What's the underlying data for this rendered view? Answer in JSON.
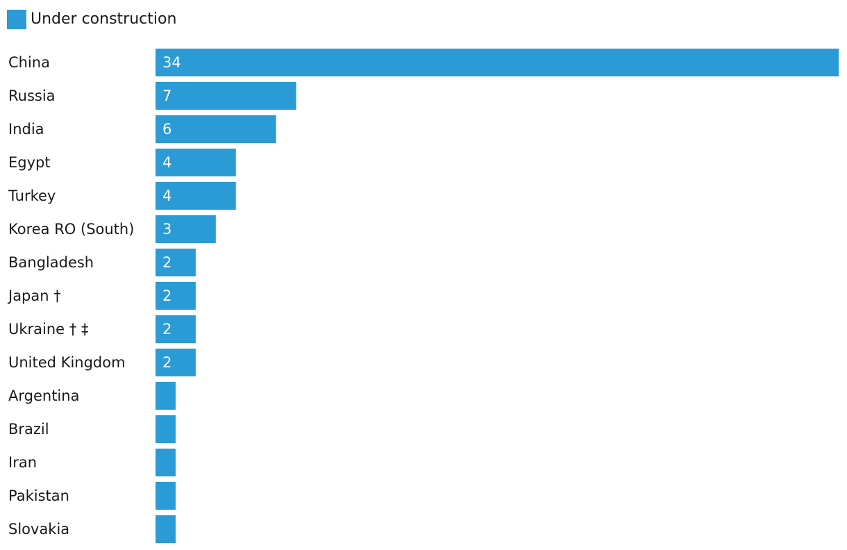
{
  "colors": {
    "bar": "#2b9bd5"
  },
  "legend": {
    "label": "Under construction"
  },
  "chart_data": {
    "type": "bar",
    "orientation": "horizontal",
    "categories": [
      "China",
      "Russia",
      "India",
      "Egypt",
      "Turkey",
      "Korea RO (South)",
      "Bangladesh",
      "Japan †",
      "Ukraine † ‡",
      "United Kingdom",
      "Argentina",
      "Brazil",
      "Iran",
      "Pakistan",
      "Slovakia"
    ],
    "series": [
      {
        "name": "Under construction",
        "values": [
          34,
          7,
          6,
          4,
          4,
          3,
          2,
          2,
          2,
          2,
          1,
          1,
          1,
          1,
          1
        ],
        "labels": [
          "34",
          "7",
          "6",
          "4",
          "4",
          "3",
          "2",
          "2",
          "2",
          "2",
          "",
          "",
          "",
          "",
          ""
        ]
      }
    ],
    "title": "",
    "xlabel": "",
    "ylabel": "",
    "xlim": [
      0,
      34
    ],
    "grid": false,
    "legend_position": "top-left"
  }
}
